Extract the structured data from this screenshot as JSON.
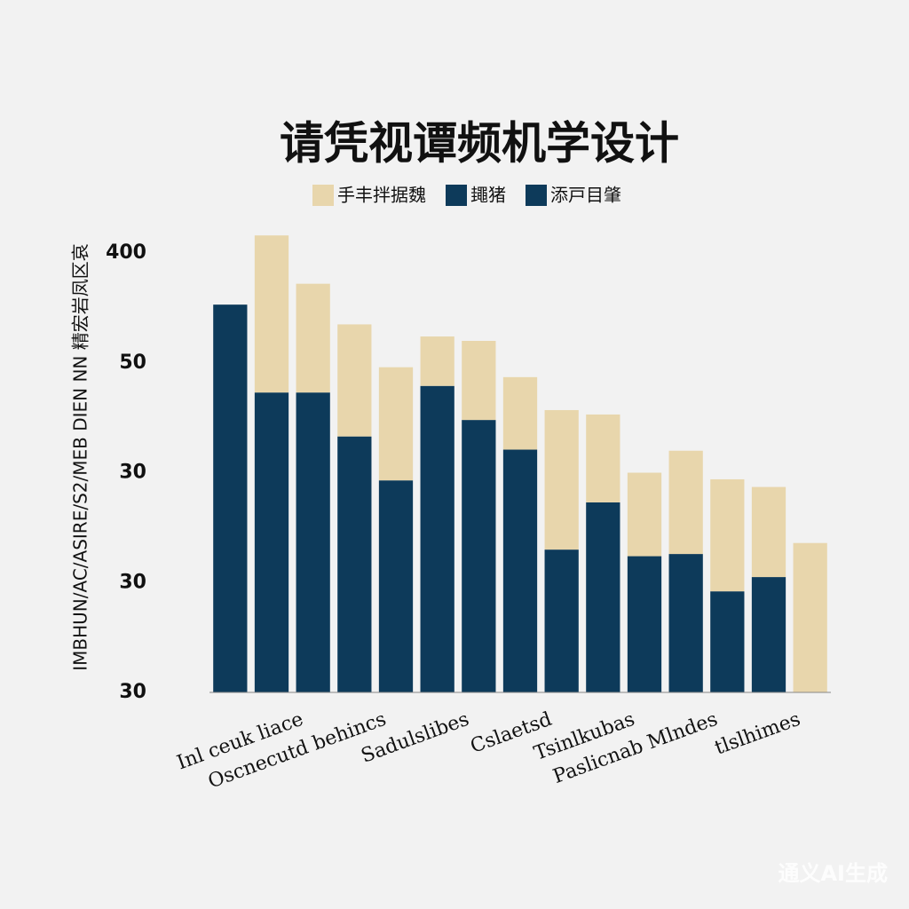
{
  "chart_data": {
    "type": "stacked_bar",
    "title": "请凭视谭频机学设计",
    "y_label": "IMBHUN/AC/ASIRE/S2/MEB DIEN NN 精宏岩凤区哀",
    "categories": [
      null,
      "Inl ceuk liace",
      null,
      "Oscnecutd behincs",
      null,
      "Sadulslibes",
      null,
      "Cslaetsd",
      null,
      "Tsinlkubas",
      null,
      "Paslicnab Mlndes",
      null,
      "tlslhimes",
      null
    ],
    "series": [
      {
        "name": "手丰拌据魏",
        "color": "#e8d6ac",
        "values": [
          0,
          1.43,
          0.99,
          1.02,
          1.03,
          0.45,
          0.72,
          0.66,
          1.27,
          0.8,
          0.76,
          0.94,
          1.02,
          0.82,
          1.36
        ]
      },
      {
        "name": "䵷猪",
        "color": "#0d3a5a",
        "values": [
          3.53,
          2.73,
          2.73,
          2.33,
          1.93,
          2.79,
          2.48,
          2.21,
          1.3,
          1.73,
          1.24,
          1.26,
          0.92,
          1.05,
          0
        ]
      },
      {
        "name": "添戸目肇",
        "color": "#0d3a5a",
        "values": [
          null,
          null,
          null,
          null,
          null,
          null,
          null,
          null,
          null,
          null,
          null,
          null,
          null,
          null,
          null
        ]
      }
    ],
    "ylim": [
      0,
      4
    ],
    "yticks": [
      {
        "value": 0,
        "label": "30"
      },
      {
        "value": 1,
        "label": "30"
      },
      {
        "value": 2,
        "label": "30"
      },
      {
        "value": 3,
        "label": "50"
      },
      {
        "value": 4,
        "label": "400"
      }
    ],
    "grid": false,
    "watermark": "通义AI生成"
  }
}
